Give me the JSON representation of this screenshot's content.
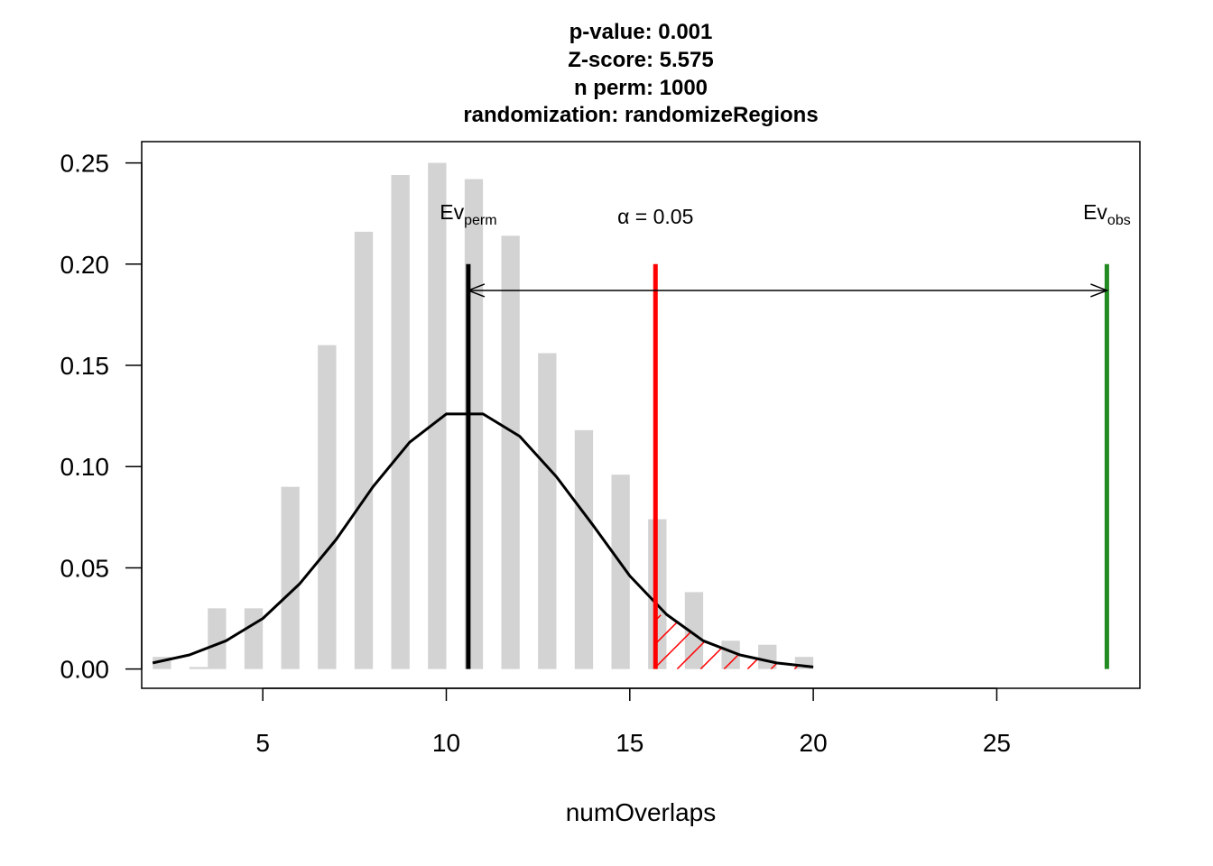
{
  "chart_data": {
    "type": "bar",
    "title_lines": [
      "p-value:  0.001",
      "Z-score:  5.575",
      "n perm:  1000",
      "randomization:  randomizeRegions"
    ],
    "xlabel": "numOverlaps",
    "ylabel": "",
    "xlim": [
      1.7,
      28.9
    ],
    "ylim": [
      -0.0095,
      0.2605
    ],
    "x_ticks": [
      5,
      10,
      15,
      20,
      25
    ],
    "y_ticks": [
      0.0,
      0.05,
      0.1,
      0.15,
      0.2,
      0.25
    ],
    "y_tick_labels": [
      "0.00",
      "0.05",
      "0.10",
      "0.15",
      "0.20",
      "0.25"
    ],
    "histogram": {
      "name": "",
      "color": "#d3d3d3",
      "bars": [
        {
          "x0": 2.0,
          "x1": 2.5,
          "y": 0.006
        },
        {
          "x0": 3.0,
          "x1": 3.5,
          "y": 0.001
        },
        {
          "x0": 3.5,
          "x1": 4.0,
          "y": 0.03
        },
        {
          "x0": 4.5,
          "x1": 5.0,
          "y": 0.03
        },
        {
          "x0": 5.5,
          "x1": 6.0,
          "y": 0.09
        },
        {
          "x0": 6.5,
          "x1": 7.0,
          "y": 0.16
        },
        {
          "x0": 7.5,
          "x1": 8.0,
          "y": 0.216
        },
        {
          "x0": 8.5,
          "x1": 9.0,
          "y": 0.244
        },
        {
          "x0": 9.5,
          "x1": 10.0,
          "y": 0.25
        },
        {
          "x0": 10.5,
          "x1": 11.0,
          "y": 0.242
        },
        {
          "x0": 11.5,
          "x1": 12.0,
          "y": 0.214
        },
        {
          "x0": 12.5,
          "x1": 13.0,
          "y": 0.156
        },
        {
          "x0": 13.5,
          "x1": 14.0,
          "y": 0.118
        },
        {
          "x0": 14.5,
          "x1": 15.0,
          "y": 0.096
        },
        {
          "x0": 15.5,
          "x1": 16.0,
          "y": 0.074
        },
        {
          "x0": 16.5,
          "x1": 17.0,
          "y": 0.038
        },
        {
          "x0": 17.5,
          "x1": 18.0,
          "y": 0.014
        },
        {
          "x0": 18.5,
          "x1": 19.0,
          "y": 0.012
        },
        {
          "x0": 19.5,
          "x1": 20.0,
          "y": 0.006
        }
      ]
    },
    "density_curve": {
      "name": "",
      "color": "#000000",
      "x": [
        2,
        3,
        4,
        5,
        6,
        7,
        8,
        9,
        10,
        11,
        12,
        13,
        14,
        15,
        16,
        17,
        18,
        19,
        20
      ],
      "y": [
        0.003,
        0.007,
        0.014,
        0.025,
        0.042,
        0.064,
        0.09,
        0.112,
        0.126,
        0.126,
        0.115,
        0.095,
        0.071,
        0.046,
        0.027,
        0.014,
        0.007,
        0.003,
        0.001
      ]
    },
    "ev_perm": {
      "label": "Ev",
      "label_sub": "perm",
      "x": 10.6,
      "y_top": 0.2,
      "color": "#000000"
    },
    "alpha_line": {
      "label": "α = 0.05",
      "x": 15.7,
      "y_top": 0.2,
      "color": "#ff0000"
    },
    "ev_obs": {
      "label": "Ev",
      "label_sub": "obs",
      "x": 28,
      "y_top": 0.2,
      "color": "#228b22"
    },
    "arrow": {
      "x_from": 10.6,
      "x_to": 28,
      "y": 0.187,
      "color": "#000000"
    },
    "shaded_tail": {
      "x_from": 15.7,
      "color": "#ff0000"
    },
    "grid": false,
    "legend": "none"
  }
}
